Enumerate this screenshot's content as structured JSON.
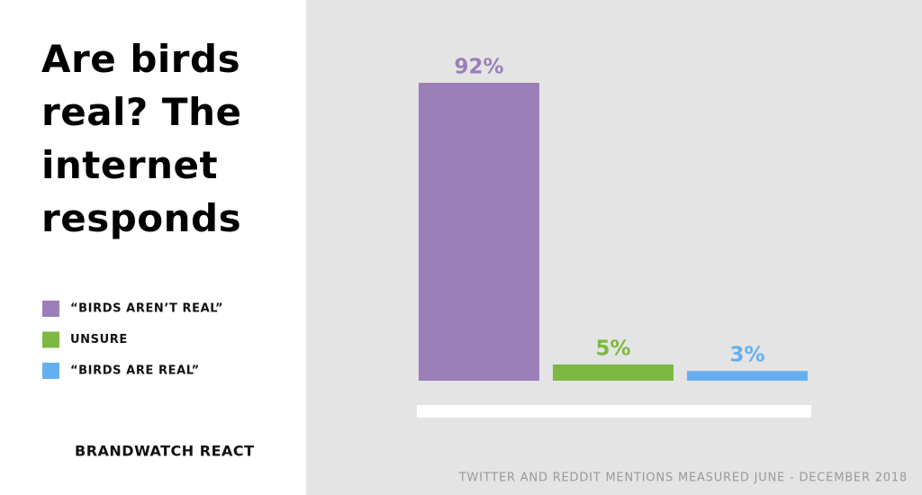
{
  "chart_data": {
    "type": "bar",
    "title": "Are birds real? The internet responds",
    "categories": [
      "“BIRDS AREN’T REAL”",
      "UNSURE",
      "“BIRDS ARE REAL”"
    ],
    "values": [
      92,
      5,
      3
    ],
    "value_labels": [
      "92%",
      "5%",
      "3%"
    ],
    "colors": [
      "#9b7fb8",
      "#7db843",
      "#64b0ef"
    ],
    "note": "TWITTER AND REDDIT MENTIONS MEASURED JUNE - DECEMBER 2018",
    "source": "BRANDWATCH REACT"
  }
}
